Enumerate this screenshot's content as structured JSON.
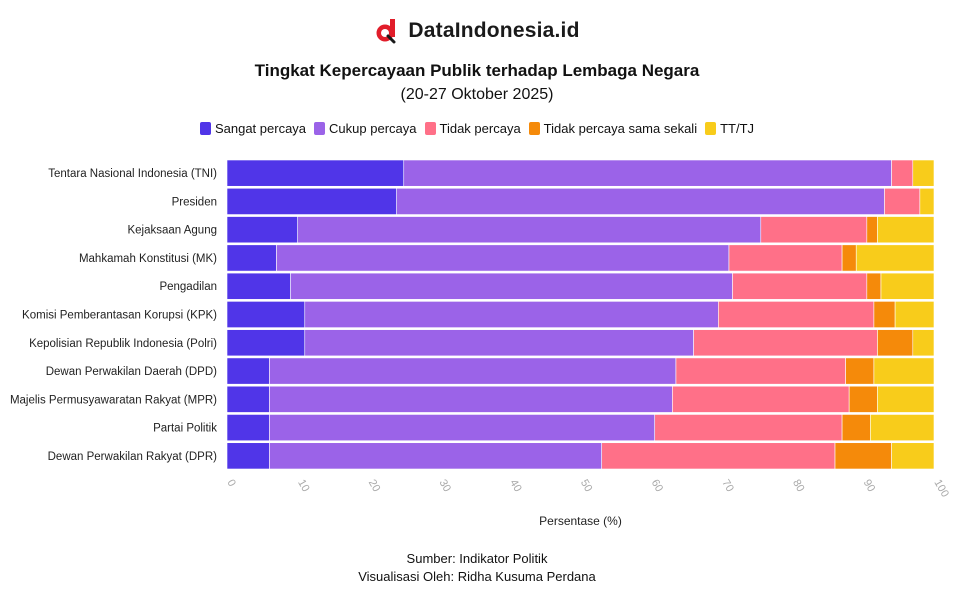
{
  "brand": {
    "name": "DataIndonesia.id",
    "logo_icon": "dataindonesia-logo-icon",
    "logo_color": "#e11d2a"
  },
  "chart_data": {
    "type": "bar",
    "orientation": "horizontal",
    "stacked": true,
    "title": "Tingkat Kepercayaan Publik terhadap Lembaga Negara",
    "subtitle": "(20-27 Oktober 2025)",
    "xlabel": "Persentase (%)",
    "ylabel": "",
    "xlim": [
      0,
      100
    ],
    "xticks": [
      "0",
      "10",
      "20",
      "30",
      "40",
      "50",
      "60",
      "70",
      "80",
      "90",
      "100"
    ],
    "legend_position": "top-center",
    "categories": [
      "Tentara Nasional Indonesia (TNI)",
      "Presiden",
      "Kejaksaan Agung",
      "Mahkamah Konstitusi (MK)",
      "Pengadilan",
      "Komisi Pemberantasan Korupsi (KPK)",
      "Kepolisian Republik Indonesia (Polri)",
      "Dewan Perwakilan Daerah (DPD)",
      "Majelis Permusyawaratan Rakyat (MPR)",
      "Partai Politik",
      "Dewan Perwakilan Rakyat (DPR)"
    ],
    "series": [
      {
        "name": "Sangat percaya",
        "color": "#5035e8",
        "values": [
          25,
          24,
          10,
          7,
          9,
          11,
          11,
          6,
          6,
          6,
          6
        ]
      },
      {
        "name": "Cukup percaya",
        "color": "#9b63e8",
        "values": [
          69,
          69,
          65.5,
          64,
          62.5,
          58.5,
          55,
          57.5,
          57,
          54.5,
          47
        ]
      },
      {
        "name": "Tidak percaya",
        "color": "#ff7088",
        "values": [
          3,
          5,
          15,
          16,
          19,
          22,
          26,
          24,
          25,
          26.5,
          33
        ]
      },
      {
        "name": "Tidak percaya sama sekali",
        "color": "#f58a0a",
        "values": [
          0,
          0,
          1.5,
          2,
          2,
          3,
          5,
          4,
          4,
          4,
          8
        ]
      },
      {
        "name": "TT/TJ",
        "color": "#f8cc1b",
        "values": [
          3,
          2,
          8,
          11,
          7.5,
          5.5,
          3,
          8.5,
          8,
          9,
          6
        ]
      }
    ]
  },
  "footer": {
    "source": "Sumber: Indikator Politik",
    "credit": "Visualisasi Oleh: Ridha Kusuma Perdana"
  }
}
